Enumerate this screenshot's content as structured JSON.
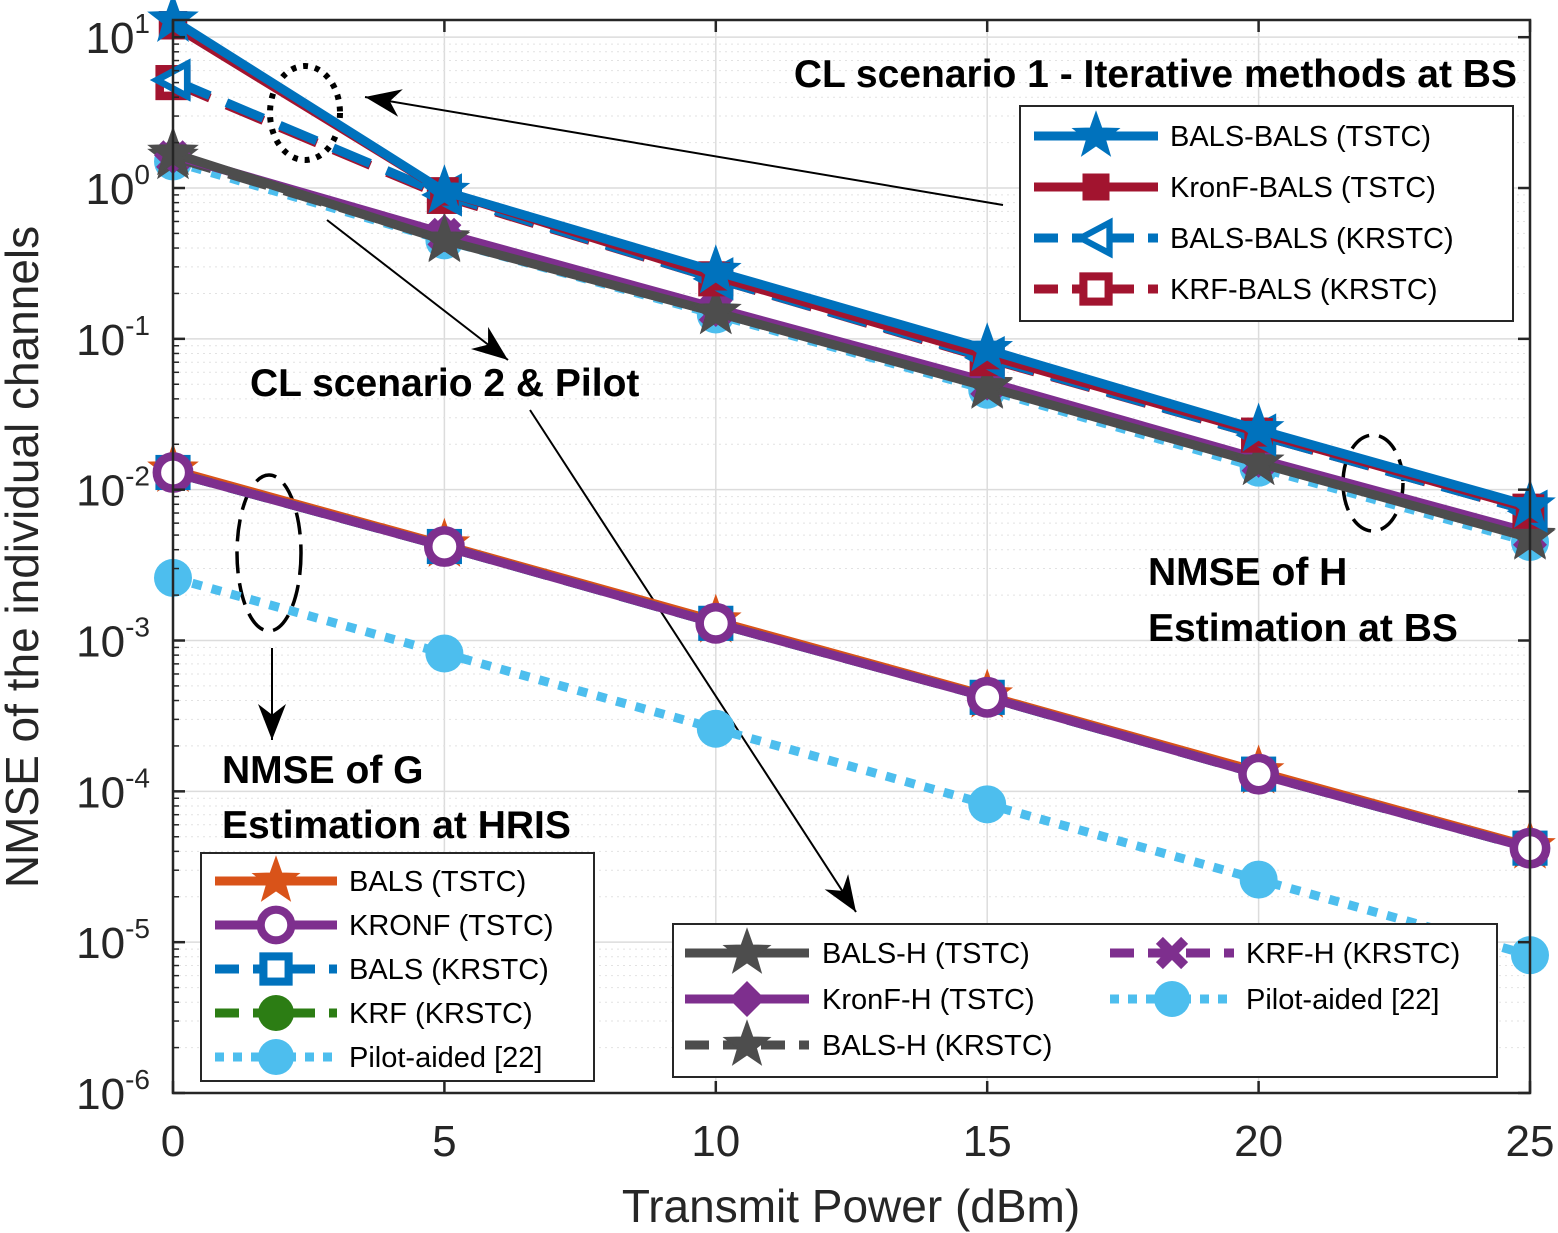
{
  "chart_data": {
    "type": "line",
    "xlabel": "Transmit Power (dBm)",
    "ylabel": "NMSE of the individual channels",
    "x_ticks": [
      "0",
      "5",
      "10",
      "15",
      "20",
      "25"
    ],
    "y_ticks": [
      {
        "base": "10",
        "exp": "1"
      },
      {
        "base": "10",
        "exp": "0"
      },
      {
        "base": "10",
        "exp": "-1"
      },
      {
        "base": "10",
        "exp": "-2"
      },
      {
        "base": "10",
        "exp": "-3"
      },
      {
        "base": "10",
        "exp": "-4"
      },
      {
        "base": "10",
        "exp": "-5"
      },
      {
        "base": "10",
        "exp": "-6"
      }
    ],
    "xlim": [
      0,
      25
    ],
    "ylim": [
      1e-06,
      13
    ],
    "yscale": "log",
    "grid": true,
    "x": [
      0,
      5,
      10,
      15,
      20,
      25
    ],
    "series": [
      {
        "name": "BALS-BALS (TSTC)",
        "group": "H1",
        "color": "#0072BD",
        "marker": "star",
        "linestyle": "solid",
        "values": [
          13,
          0.95,
          0.28,
          0.085,
          0.025,
          0.0078
        ]
      },
      {
        "name": "KronF-BALS (TSTC)",
        "group": "H1",
        "color": "#A2142F",
        "marker": "square",
        "linestyle": "solid",
        "values": [
          12,
          0.95,
          0.26,
          0.078,
          0.024,
          0.0075
        ]
      },
      {
        "name": "BALS-BALS (KRSTC)",
        "group": "H1",
        "color": "#0072BD",
        "marker": "triangle-left-open",
        "linestyle": "dashed",
        "values": [
          5.2,
          0.9,
          0.25,
          0.075,
          0.023,
          0.0072
        ]
      },
      {
        "name": "KRF-BALS (KRSTC)",
        "group": "H1",
        "color": "#A2142F",
        "marker": "square-open",
        "linestyle": "dashed",
        "values": [
          5,
          0.88,
          0.25,
          0.074,
          0.023,
          0.0072
        ]
      },
      {
        "name": "BALS-H (TSTC)",
        "group": "H2",
        "color": "#4D4D4D",
        "marker": "star",
        "linestyle": "solid",
        "values": [
          1.7,
          0.45,
          0.15,
          0.048,
          0.015,
          0.0048
        ]
      },
      {
        "name": "KronF-H (TSTC)",
        "group": "H2",
        "color": "#7E2F8E",
        "marker": "diamond",
        "linestyle": "solid",
        "values": [
          1.65,
          0.5,
          0.16,
          0.052,
          0.016,
          0.0052
        ]
      },
      {
        "name": "BALS-H (KRSTC)",
        "group": "H2",
        "color": "#4D4D4D",
        "marker": "star",
        "linestyle": "dashed",
        "values": [
          1.6,
          0.46,
          0.15,
          0.049,
          0.015,
          0.0049
        ]
      },
      {
        "name": "KRF-H (KRSTC)",
        "group": "H2",
        "color": "#7E2F8E",
        "marker": "x",
        "linestyle": "dashed",
        "values": [
          1.6,
          0.49,
          0.155,
          0.05,
          0.0155,
          0.005
        ]
      },
      {
        "name": "Pilot-aided [22]",
        "group": "H2",
        "color": "#4DBEEE",
        "marker": "circle",
        "linestyle": "dotted",
        "values": [
          1.5,
          0.45,
          0.145,
          0.046,
          0.014,
          0.0045
        ]
      },
      {
        "name": "BALS (TSTC)",
        "group": "G",
        "color": "#D95319",
        "marker": "star",
        "linestyle": "solid",
        "values": [
          0.0135,
          0.0043,
          0.00135,
          0.00043,
          0.000135,
          4.3e-05
        ]
      },
      {
        "name": "KRONF (TSTC)",
        "group": "G",
        "color": "#7E2F8E",
        "marker": "circle-open",
        "linestyle": "solid",
        "values": [
          0.013,
          0.0042,
          0.0013,
          0.00042,
          0.00013,
          4.2e-05
        ]
      },
      {
        "name": "BALS (KRSTC)",
        "group": "G",
        "color": "#0072BD",
        "marker": "square-open",
        "linestyle": "dashed",
        "values": [
          0.013,
          0.0042,
          0.0013,
          0.00042,
          0.00013,
          4.2e-05
        ]
      },
      {
        "name": "KRF (KRSTC)",
        "group": "G",
        "color": "#2C7D14",
        "marker": "circle",
        "linestyle": "dashed",
        "values": [
          0.013,
          0.0042,
          0.0013,
          0.00042,
          0.00013,
          4.2e-05
        ]
      },
      {
        "name": "Pilot-aided [22]",
        "group": "G",
        "color": "#4DBEEE",
        "marker": "circle",
        "linestyle": "dotted",
        "values": [
          0.0026,
          0.00082,
          0.00026,
          8.2e-05,
          2.6e-05,
          8.2e-06
        ]
      }
    ],
    "legends": {
      "H1": [
        "BALS-BALS (TSTC)",
        "KronF-BALS (TSTC)",
        "BALS-BALS (KRSTC)",
        "KRF-BALS (KRSTC)"
      ],
      "H2": [
        "BALS-H (TSTC)",
        "KronF-H (TSTC)",
        "BALS-H (KRSTC)",
        "KRF-H (KRSTC)",
        "Pilot-aided [22]"
      ],
      "G": [
        "BALS (TSTC)",
        "KRONF (TSTC)",
        "BALS (KRSTC)",
        "KRF (KRSTC)",
        "Pilot-aided [22]"
      ]
    },
    "annotations": {
      "cl1": "CL scenario 1 - Iterative methods at BS",
      "cl2": "CL scenario 2 & Pilot",
      "h_line1": "NMSE of H",
      "h_line2": "Estimation at BS",
      "g_line1": "NMSE of G",
      "g_line2": "Estimation at HRIS"
    }
  }
}
